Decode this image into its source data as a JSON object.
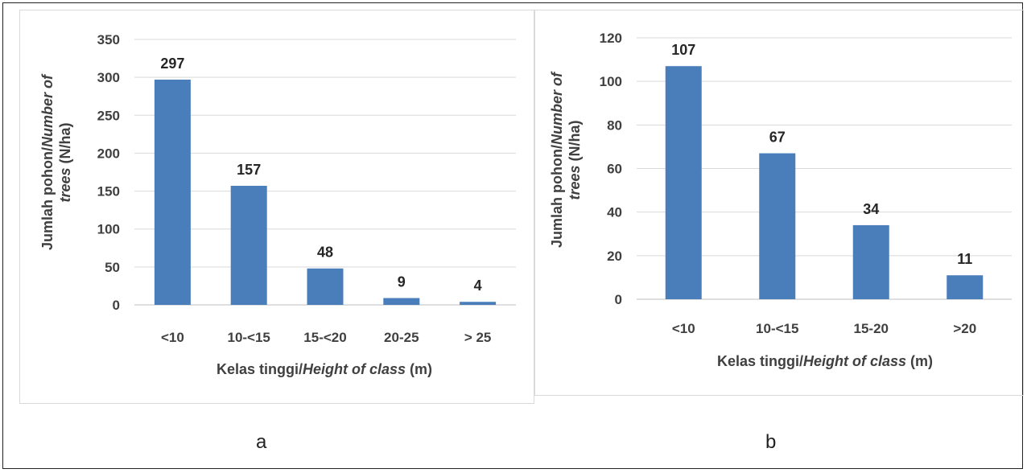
{
  "colors": {
    "bar": "#4a7ebb",
    "grid": "#d9d9d9",
    "axis": "#bfbfbf"
  },
  "panels": [
    {
      "label": "a"
    },
    {
      "label": "b"
    }
  ],
  "chart_data": [
    {
      "type": "bar",
      "panel": "a",
      "categories": [
        "<10",
        "10-<15",
        "15-<20",
        "20-25",
        "> 25"
      ],
      "values": [
        297,
        157,
        48,
        9,
        4
      ],
      "data_labels": [
        "297",
        "157",
        "48",
        "9",
        "4"
      ],
      "ylim": [
        0,
        350
      ],
      "yticks": [
        0,
        50,
        100,
        150,
        200,
        250,
        300,
        350
      ],
      "xlabel": {
        "normal": "Kelas tinggi/",
        "italic": "Height of class",
        "suffix": " (m)"
      },
      "ylabel": {
        "line1_normal": "Jumlah pohon/",
        "line1_italic": "Number of",
        "line2_italic": "trees",
        "line2_normal": " (N/ha)"
      },
      "grid": true,
      "legend": "none"
    },
    {
      "type": "bar",
      "panel": "b",
      "categories": [
        "<10",
        "10-<15",
        "15-20",
        ">20"
      ],
      "values": [
        107,
        67,
        34,
        11
      ],
      "data_labels": [
        "107",
        "67",
        "34",
        "11"
      ],
      "ylim": [
        0,
        120
      ],
      "yticks": [
        0,
        20,
        40,
        60,
        80,
        100,
        120
      ],
      "xlabel": {
        "normal": "Kelas tinggi/",
        "italic": "Height of class",
        "suffix": " (m)"
      },
      "ylabel": {
        "line1_normal": "Jumlah pohon/",
        "line1_italic": "Number of",
        "line2_italic": "trees",
        "line2_normal": " (N/ha)"
      },
      "grid": true,
      "legend": "none"
    }
  ]
}
